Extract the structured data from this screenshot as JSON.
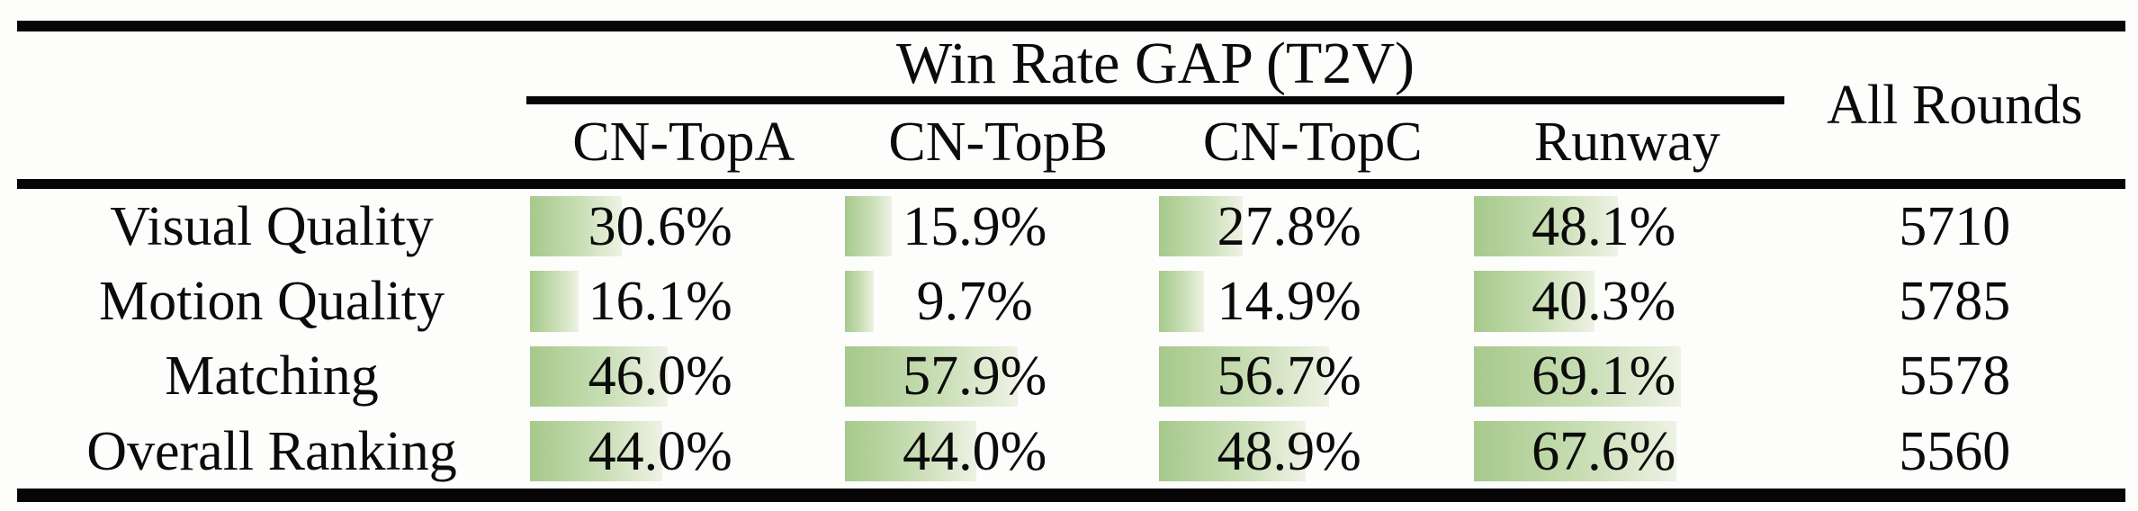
{
  "table": {
    "group_header": "Win Rate GAP (T2V)",
    "all_rounds_header": "All Rounds",
    "columns": [
      "CN-TopA",
      "CN-TopB",
      "CN-TopC",
      "Runway"
    ],
    "rows": [
      {
        "label": "Visual Quality",
        "values": [
          "30.6%",
          "15.9%",
          "27.8%",
          "48.1%"
        ],
        "numeric": [
          30.6,
          15.9,
          27.8,
          48.1
        ],
        "all_rounds": "5710"
      },
      {
        "label": "Motion Quality",
        "values": [
          "16.1%",
          "9.7%",
          "14.9%",
          "40.3%"
        ],
        "numeric": [
          16.1,
          9.7,
          14.9,
          40.3
        ],
        "all_rounds": "5785"
      },
      {
        "label": "Matching",
        "values": [
          "46.0%",
          "57.9%",
          "56.7%",
          "69.1%"
        ],
        "numeric": [
          46.0,
          57.9,
          56.7,
          69.1
        ],
        "all_rounds": "5578"
      },
      {
        "label": "Overall Ranking",
        "values": [
          "44.0%",
          "44.0%",
          "48.9%",
          "67.6%"
        ],
        "numeric": [
          44.0,
          44.0,
          48.9,
          67.6
        ],
        "all_rounds": "5560"
      }
    ]
  },
  "chart_data": {
    "type": "table",
    "title": "Win Rate GAP (T2V)",
    "columns": [
      "CN-TopA",
      "CN-TopB",
      "CN-TopC",
      "Runway",
      "All Rounds"
    ],
    "row_labels": [
      "Visual Quality",
      "Motion Quality",
      "Matching",
      "Overall Ranking"
    ],
    "win_rate_gap_percent": [
      [
        30.6,
        15.9,
        27.8,
        48.1
      ],
      [
        16.1,
        9.7,
        14.9,
        40.3
      ],
      [
        46.0,
        57.9,
        56.7,
        69.1
      ],
      [
        44.0,
        44.0,
        48.9,
        67.6
      ]
    ],
    "all_rounds": [
      5710,
      5785,
      5578,
      5560
    ],
    "layout_hints": "green gradient data bars inside cells, bar length proportional to percentage (100% = full column width)"
  },
  "colors": {
    "bar_gradient_start": "#a6c98b",
    "bar_gradient_end": "#eef2e4",
    "rule_black": "#060606",
    "background": "#fdfdfc",
    "text": "#0b0b0b"
  }
}
